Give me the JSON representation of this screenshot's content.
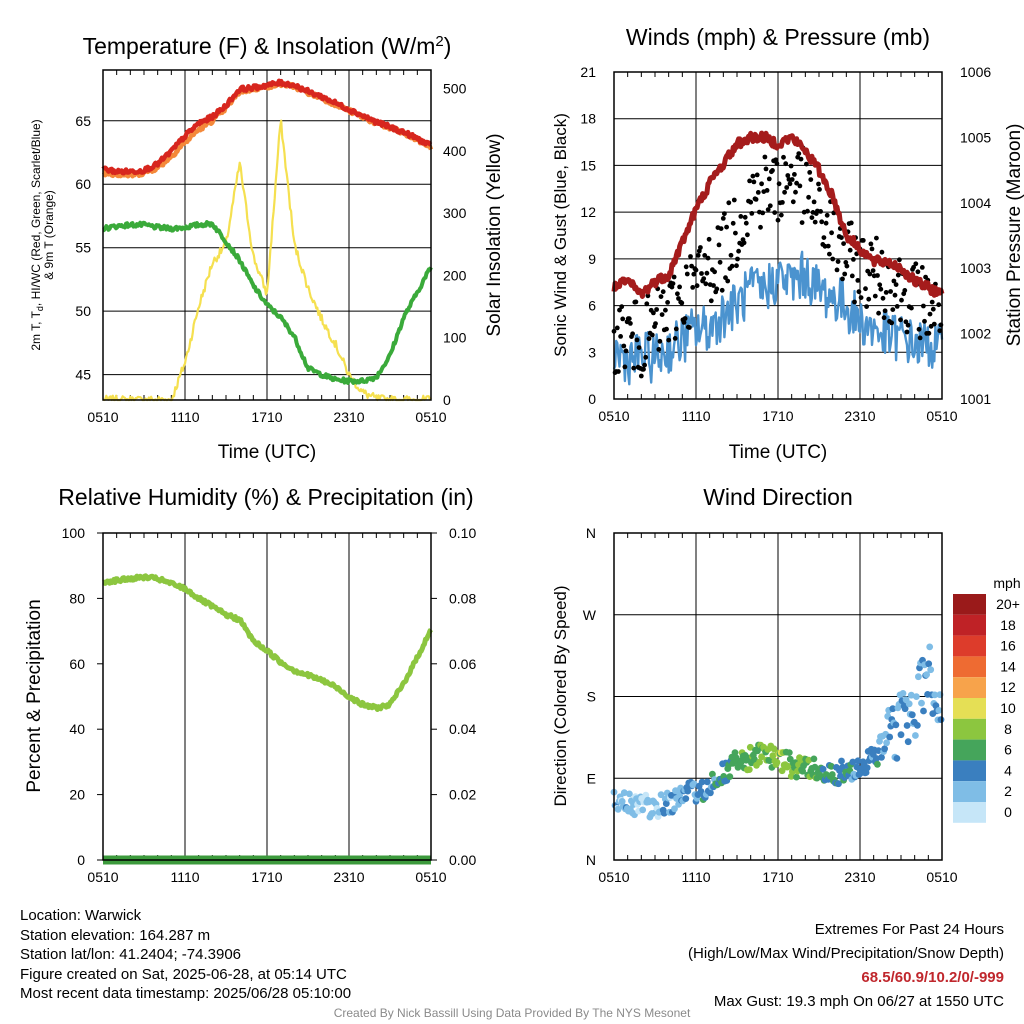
{
  "chart_data": [
    {
      "type": "line",
      "title": "Temperature (F) & Insolation (W/m²)",
      "xlabel": "Time (UTC)",
      "ylabel": "2m T, Td, HI/WC (Red, Green, Scarlet/Blue) & 9m T (Orange)",
      "ylabel_lines": [
        "2m T, T",
        "d",
        ", HI/WC (Red, Green, Scarlet/Blue)",
        "& 9m T (Orange)"
      ],
      "y2label": "Solar Insolation (Yellow)",
      "x_ticks": [
        "0510",
        "1110",
        "1710",
        "2310",
        "0510"
      ],
      "ylim": [
        43,
        69
      ],
      "y_ticks": [
        45,
        50,
        55,
        60,
        65
      ],
      "y2lim": [
        0,
        530
      ],
      "y2_ticks": [
        0,
        100,
        200,
        300,
        400,
        500
      ],
      "x_hours": [
        0,
        1,
        2,
        3,
        4,
        5,
        6,
        7,
        8,
        9,
        10,
        11,
        12,
        13,
        14,
        15,
        16,
        17,
        18,
        19,
        20,
        21,
        22,
        23,
        24
      ],
      "series": [
        {
          "name": "2m T",
          "color": "#d7261e",
          "axis": "left",
          "y": [
            61.2,
            61.0,
            61.0,
            61.1,
            61.6,
            62.6,
            63.8,
            64.8,
            65.3,
            66.2,
            67.5,
            67.6,
            67.8,
            68.0,
            67.8,
            67.3,
            66.9,
            66.4,
            65.9,
            65.4,
            64.9,
            64.5,
            64.1,
            63.6,
            63.0
          ]
        },
        {
          "name": "9m T",
          "color": "#f4893a",
          "axis": "left",
          "y": [
            60.9,
            60.8,
            60.7,
            60.9,
            61.3,
            62.2,
            63.3,
            64.3,
            65.0,
            66.0,
            67.3,
            67.5,
            67.7,
            67.9,
            67.7,
            67.2,
            66.8,
            66.3,
            65.8,
            65.3,
            64.8,
            64.4,
            64.0,
            63.5,
            62.9
          ]
        },
        {
          "name": "Td",
          "color": "#3aaa3a",
          "axis": "left",
          "y": [
            56.5,
            56.7,
            56.8,
            56.8,
            56.6,
            56.5,
            56.6,
            56.8,
            56.9,
            55.5,
            54.0,
            52.0,
            50.5,
            49.5,
            48.0,
            45.5,
            45.0,
            44.6,
            44.5,
            44.5,
            44.8,
            46.5,
            49.5,
            51.5,
            53.5
          ]
        },
        {
          "name": "Solar Insolation",
          "color": "#f5e050",
          "axis": "right",
          "y": [
            0,
            0,
            0,
            0,
            0,
            0,
            60,
            150,
            220,
            250,
            380,
            230,
            170,
            450,
            250,
            180,
            130,
            90,
            40,
            12,
            2,
            0,
            0,
            0,
            0
          ]
        }
      ]
    },
    {
      "type": "line",
      "title": "Winds (mph) & Pressure (mb)",
      "xlabel": "Time (UTC)",
      "ylabel": "Sonic Wind & Gust (Blue, Black)",
      "y2label": "Station Pressure (Maroon)",
      "x_ticks": [
        "0510",
        "1110",
        "1710",
        "2310",
        "0510"
      ],
      "ylim": [
        0,
        21
      ],
      "y_ticks": [
        0,
        3,
        6,
        9,
        12,
        15,
        18,
        21
      ],
      "y2lim": [
        1001,
        1006
      ],
      "y2_ticks": [
        1001,
        1002,
        1003,
        1004,
        1005,
        1006
      ],
      "x_hours": [
        0,
        1,
        2,
        3,
        4,
        5,
        6,
        7,
        8,
        9,
        10,
        11,
        12,
        13,
        14,
        15,
        16,
        17,
        18,
        19,
        20,
        21,
        22,
        23,
        24
      ],
      "series": [
        {
          "name": "Sonic Wind",
          "color": "#4b93cf",
          "axis": "left",
          "y": [
            3.0,
            2.5,
            2.8,
            2.6,
            3.2,
            3.8,
            4.5,
            4.5,
            5.5,
            6.0,
            7.0,
            7.0,
            7.8,
            7.5,
            8.0,
            7.0,
            6.5,
            6.0,
            5.0,
            4.5,
            4.0,
            4.0,
            3.5,
            3.5,
            3.2
          ]
        },
        {
          "name": "Gust",
          "color": "#000000",
          "axis": "left",
          "type": "scatter",
          "y": [
            4.2,
            4.0,
            3.8,
            4.5,
            5.5,
            6.5,
            7.5,
            8.5,
            9.5,
            11.0,
            13.0,
            13.5,
            13.5,
            14.5,
            13.5,
            11.5,
            10.5,
            9.0,
            8.5,
            8.0,
            7.5,
            7.0,
            6.5,
            6.0,
            5.5
          ]
        },
        {
          "name": "Station Pressure",
          "color": "#a51c1c",
          "axis": "right",
          "y": [
            1002.7,
            1002.8,
            1002.6,
            1002.8,
            1002.9,
            1003.4,
            1003.9,
            1004.3,
            1004.6,
            1004.9,
            1005.0,
            1005.0,
            1004.9,
            1005.0,
            1004.8,
            1004.5,
            1004.1,
            1003.5,
            1003.3,
            1003.1,
            1003.1,
            1003.0,
            1002.8,
            1002.7,
            1002.6
          ]
        }
      ]
    },
    {
      "type": "line",
      "title": "Relative Humidity (%) & Precipitation (in)",
      "ylabel": "Percent & Precipitation",
      "x_ticks": [
        "0510",
        "1110",
        "1710",
        "2310",
        "0510"
      ],
      "ylim": [
        0,
        100
      ],
      "y_ticks": [
        0,
        20,
        40,
        60,
        80,
        100
      ],
      "y2lim": [
        0,
        0.1
      ],
      "y2_ticks": [
        "0.00",
        "0.02",
        "0.04",
        "0.06",
        "0.08",
        "0.10"
      ],
      "x_hours": [
        0,
        1,
        2,
        3,
        4,
        5,
        6,
        7,
        8,
        9,
        10,
        11,
        12,
        13,
        14,
        15,
        16,
        17,
        18,
        19,
        20,
        21,
        22,
        23,
        24
      ],
      "series": [
        {
          "name": "Relative Humidity",
          "color": "#8cc63f",
          "axis": "left",
          "y": [
            85,
            85.5,
            86,
            86.5,
            86,
            84.5,
            83,
            80,
            77.5,
            75,
            73.5,
            67,
            64,
            60.5,
            58,
            56.5,
            55,
            53,
            50,
            47.5,
            46.5,
            47.5,
            54,
            62,
            70.5
          ]
        },
        {
          "name": "Precipitation",
          "color": "#3c9a3c",
          "axis": "right",
          "y": [
            0,
            0,
            0,
            0,
            0,
            0,
            0,
            0,
            0,
            0,
            0,
            0,
            0,
            0,
            0,
            0,
            0,
            0,
            0,
            0,
            0,
            0,
            0,
            0,
            0
          ]
        }
      ]
    },
    {
      "type": "scatter",
      "title": "Wind Direction",
      "ylabel": "Direction (Colored By Speed)",
      "x_ticks": [
        "0510",
        "1110",
        "1710",
        "2310",
        "0510"
      ],
      "y_ticks": [
        "N",
        "E",
        "S",
        "W",
        "N"
      ],
      "ylim": [
        0,
        360
      ],
      "x_hours": [
        0,
        1,
        2,
        3,
        4,
        5,
        6,
        7,
        8,
        9,
        10,
        11,
        12,
        13,
        14,
        15,
        16,
        17,
        18,
        19,
        20,
        21,
        22,
        23,
        24
      ],
      "direction_deg": [
        65,
        60,
        62,
        58,
        64,
        70,
        75,
        82,
        95,
        108,
        112,
        115,
        110,
        105,
        102,
        100,
        95,
        98,
        105,
        112,
        135,
        150,
        170,
        210,
        150
      ],
      "speed_mph": [
        2,
        2,
        1,
        2,
        2,
        3,
        4,
        4,
        5,
        6,
        7,
        7,
        8,
        7,
        7,
        6,
        5,
        4,
        4,
        4,
        3,
        3,
        3,
        3,
        3
      ],
      "legend": {
        "title": "mph",
        "labels": [
          "20+",
          "18",
          "16",
          "14",
          "12",
          "10",
          "8",
          "6",
          "4",
          "2",
          "0"
        ],
        "colors": [
          "#9a1a1a",
          "#bf2226",
          "#dd3c2b",
          "#ee6b32",
          "#f7a34b",
          "#e5df55",
          "#8cc63f",
          "#45a55b",
          "#3a7fbf",
          "#7fbde6",
          "#c6e6f8"
        ]
      }
    }
  ],
  "info_left": [
    "Location: Warwick",
    "Station elevation: 164.287 m",
    "Station lat/lon: 41.2404; -74.3906",
    "Figure created on Sat, 2025-06-28, at 05:14 UTC",
    "Most recent data timestamp: 2025/06/28 05:10:00"
  ],
  "extremes": {
    "heading": "Extremes For Past 24 Hours",
    "subheading": "(High/Low/Max Wind/Precipitation/Snow Depth)",
    "values": "68.5/60.9/10.2/0/-999",
    "gust": "Max Gust: 19.3 mph On 06/27 at 1550 UTC"
  },
  "credit": "Created By Nick Bassill Using Data Provided By The NYS Mesonet"
}
